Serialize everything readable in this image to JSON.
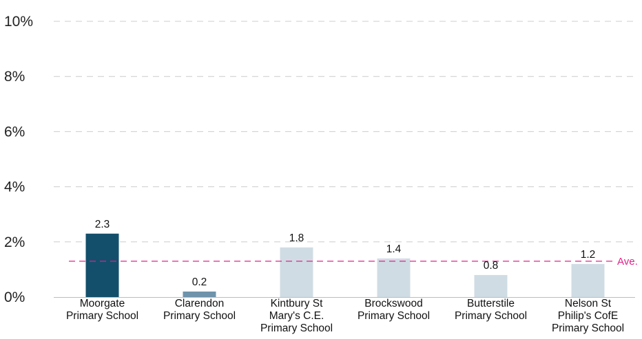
{
  "chart_data": {
    "type": "bar",
    "categories": [
      [
        "Moorgate",
        "Primary School"
      ],
      [
        "Clarendon",
        "Primary School"
      ],
      [
        "Kintbury St",
        "Mary's C.E.",
        "Primary School"
      ],
      [
        "Brockswood",
        "Primary School"
      ],
      [
        "Butterstile",
        "Primary School"
      ],
      [
        "Nelson St",
        "Philip's CofE",
        "Primary School"
      ]
    ],
    "values": [
      2.3,
      0.2,
      1.8,
      1.4,
      0.8,
      1.2
    ],
    "data_labels": [
      "2.3",
      "0.2",
      "1.8",
      "1.4",
      "0.8",
      "1.2"
    ],
    "bar_colors": [
      "#134f6b",
      "#6e93ab",
      "#d0dce4",
      "#d0dce4",
      "#d0dce4",
      "#d0dce4"
    ],
    "ylim": [
      0,
      10
    ],
    "yticks": [
      0,
      2,
      4,
      6,
      8,
      10
    ],
    "ytick_labels": [
      "0%",
      "2%",
      "4%",
      "6%",
      "8%",
      "10%"
    ],
    "grid": true,
    "grid_color": "#cccccc",
    "average": {
      "value": 1.3,
      "label": "Ave.",
      "color": "#e0218a"
    }
  }
}
